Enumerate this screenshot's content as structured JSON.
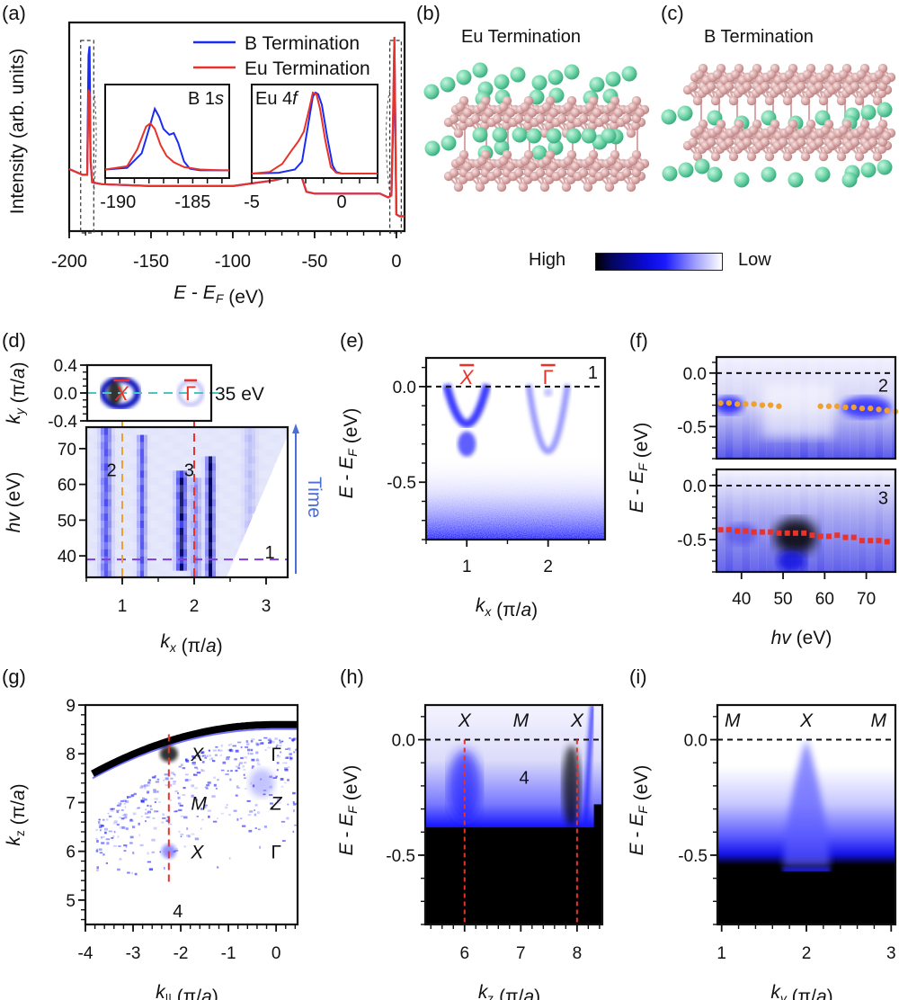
{
  "figure": {
    "panel_labels": [
      "(a)",
      "(b)",
      "(c)",
      "(d)",
      "(e)",
      "(f)",
      "(g)",
      "(h)",
      "(i)"
    ]
  },
  "colorbar": {
    "high_label": "High",
    "low_label": "Low",
    "colors": [
      "#000000",
      "#0a0ad8",
      "#1a1aff",
      "#ffffff"
    ]
  },
  "structures": {
    "b_title": "Eu Termination",
    "c_title": "B Termination",
    "eu_color": "#7fdcb4",
    "b_color": "#e2b5b5"
  },
  "chart_data": [
    {
      "id": "a",
      "type": "line",
      "xlabel": "E - E_F (eV)",
      "ylabel": "Intensity (arb. units)",
      "xlim": [
        -200,
        5
      ],
      "xticks": [
        -200,
        -150,
        -100,
        -50,
        0
      ],
      "xtick_labels": [
        "-200",
        "-150",
        "-100",
        "-50",
        "0"
      ],
      "legend": {
        "placement": "top-center",
        "entries": [
          {
            "name": "B   Termination",
            "color": "#1a2cf0"
          },
          {
            "name": "Eu Termination",
            "color": "#e8322a"
          }
        ]
      },
      "series": [
        {
          "name": "B Termination",
          "color": "#1a2cf0",
          "x": [
            -200,
            -192,
            -189,
            -188.2,
            -187.6,
            -187,
            -186,
            -180,
            -150,
            -130,
            -100,
            -75,
            -70,
            -66,
            -62,
            -58,
            -55,
            -50,
            -30,
            -10,
            -5,
            -3,
            -2,
            -1.2,
            -0.6,
            0,
            2,
            5
          ],
          "y": [
            0.3,
            0.27,
            0.27,
            0.9,
            0.95,
            0.35,
            0.23,
            0.22,
            0.21,
            0.21,
            0.21,
            0.24,
            0.25,
            0.3,
            0.3,
            0.26,
            0.18,
            0.17,
            0.17,
            0.17,
            0.15,
            0.16,
            0.55,
            0.97,
            0.5,
            0.06,
            0.05,
            0.05
          ]
        },
        {
          "name": "Eu Termination",
          "color": "#e8322a",
          "x": [
            -200,
            -192,
            -189,
            -188.2,
            -187.6,
            -187,
            -186,
            -180,
            -150,
            -130,
            -100,
            -75,
            -70,
            -66,
            -62,
            -58,
            -55,
            -50,
            -30,
            -10,
            -5,
            -3,
            -2,
            -1.2,
            -0.6,
            0,
            2,
            5
          ],
          "y": [
            0.3,
            0.27,
            0.27,
            0.72,
            0.7,
            0.35,
            0.23,
            0.22,
            0.21,
            0.21,
            0.21,
            0.24,
            0.25,
            0.29,
            0.29,
            0.26,
            0.18,
            0.17,
            0.17,
            0.17,
            0.15,
            0.16,
            0.6,
            1.0,
            0.5,
            0.06,
            0.05,
            0.05
          ]
        }
      ],
      "insets": [
        {
          "id": "a-inset-B1s",
          "label": "B 1s",
          "xlim": [
            -191,
            -182.5
          ],
          "xticks": [
            -190,
            -185
          ],
          "xtick_labels": [
            "-190",
            "-185"
          ],
          "series": [
            {
              "name": "B Termination",
              "x": [
                -191,
                -189.5,
                -188.5,
                -188,
                -187.6,
                -187.3,
                -187,
                -186.6,
                -186.3,
                -186,
                -185.6,
                -185.2,
                -184.5,
                -183,
                -182.5
              ],
              "y": [
                0.05,
                0.07,
                0.25,
                0.55,
                0.8,
                0.7,
                0.55,
                0.48,
                0.5,
                0.38,
                0.15,
                0.06,
                0.04,
                0.04,
                0.04
              ]
            },
            {
              "name": "Eu Termination",
              "x": [
                -191,
                -189.5,
                -188.8,
                -188.2,
                -187.9,
                -187.6,
                -187.2,
                -186.8,
                -186.3,
                -185.6,
                -184.5,
                -183,
                -182.5
              ],
              "y": [
                0.05,
                0.09,
                0.3,
                0.58,
                0.62,
                0.55,
                0.35,
                0.22,
                0.14,
                0.08,
                0.05,
                0.04,
                0.04
              ]
            }
          ]
        },
        {
          "id": "a-inset-Eu4f",
          "label": "Eu 4f",
          "xlim": [
            -5,
            2
          ],
          "xticks": [
            -5,
            0
          ],
          "xtick_labels": [
            "-5",
            "0"
          ],
          "series": [
            {
              "name": "B Termination",
              "x": [
                -5,
                -3.5,
                -2.6,
                -2.2,
                -1.9,
                -1.6,
                -1.45,
                -1.3,
                -1.1,
                -0.8,
                -0.5,
                -0.3,
                0,
                2
              ],
              "y": [
                0.0,
                0.01,
                0.05,
                0.15,
                0.55,
                0.95,
                1.0,
                0.98,
                0.85,
                0.45,
                0.1,
                0.02,
                0.0,
                0.0
              ]
            },
            {
              "name": "Eu Termination",
              "x": [
                -5,
                -4,
                -3.3,
                -2.8,
                -2.4,
                -2.1,
                -1.8,
                -1.6,
                -1.4,
                -1.2,
                -0.9,
                -0.6,
                -0.3,
                0,
                2
              ],
              "y": [
                0.0,
                0.02,
                0.12,
                0.28,
                0.4,
                0.52,
                0.8,
                1.0,
                0.98,
                0.8,
                0.4,
                0.08,
                0.01,
                0.0,
                0.0
              ]
            }
          ]
        }
      ]
    },
    {
      "id": "d-top",
      "type": "heatmap",
      "ylabel": "k_y (π/a)",
      "ylim": [
        -0.4,
        0.4
      ],
      "yticks": [
        0.4,
        0.0,
        -0.4
      ],
      "ytick_labels": [
        "0.4",
        "0.0",
        "-0.4"
      ],
      "xlim": [
        0.5,
        2.3
      ],
      "annotation": "35 eV",
      "points": [
        {
          "label": "X̄",
          "x": 1.0,
          "y": 0.0
        },
        {
          "label": "Γ̄",
          "x": 2.0,
          "y": 0.0
        }
      ]
    },
    {
      "id": "d",
      "type": "heatmap",
      "xlabel": "k_x (π/a)",
      "ylabel": "hv (eV)",
      "xlim": [
        0.5,
        3.3
      ],
      "ylim": [
        34,
        76
      ],
      "xticks": [
        1,
        2,
        3
      ],
      "xtick_labels": [
        "1",
        "2",
        "3"
      ],
      "yticks": [
        40,
        50,
        60,
        70
      ],
      "ytick_labels": [
        "40",
        "50",
        "60",
        "70"
      ],
      "cut_lines": [
        {
          "label": "1",
          "orientation": "horizontal",
          "value": 39,
          "color": "#7a3fd8"
        },
        {
          "label": "2",
          "orientation": "vertical",
          "value": 1.0,
          "color": "#f0a030"
        },
        {
          "label": "3",
          "orientation": "vertical",
          "value": 2.0,
          "color": "#e8322a"
        }
      ],
      "arrow_label": "Time",
      "bands_kx": [
        0.75,
        1.25,
        1.8,
        2.2
      ]
    },
    {
      "id": "e",
      "type": "heatmap",
      "xlabel": "k_x (π/a)",
      "ylabel": "E - E_F (eV)",
      "xlim": [
        0.5,
        2.7
      ],
      "ylim": [
        -0.8,
        0.15
      ],
      "xticks": [
        1,
        2
      ],
      "xtick_labels": [
        "1",
        "2"
      ],
      "yticks": [
        0.0,
        -0.5
      ],
      "ytick_labels": [
        "0.0",
        "-0.5"
      ],
      "cut_label": "1",
      "points": [
        {
          "label": "X̄",
          "x": 1.0
        },
        {
          "label": "Γ̄",
          "x": 2.0
        }
      ],
      "band_minima": [
        {
          "k": 1.0,
          "E": -0.32
        },
        {
          "k": 2.0,
          "E": -0.55
        }
      ]
    },
    {
      "id": "f-top",
      "type": "scatter",
      "ylabel": "E - E_F (eV)",
      "xlim": [
        34,
        77
      ],
      "ylim": [
        -0.8,
        0.15
      ],
      "yticks": [
        0.0,
        -0.5
      ],
      "ytick_labels": [
        "0.0",
        "-0.5"
      ],
      "cut_label": "2",
      "series": [
        {
          "name": "cut 2",
          "color": "#f0a030",
          "x": [
            35,
            37,
            39,
            41,
            43,
            45,
            47,
            49,
            59,
            61,
            63,
            65,
            67,
            69,
            71,
            73,
            75,
            77
          ],
          "y": [
            -0.28,
            -0.28,
            -0.29,
            -0.29,
            -0.29,
            -0.3,
            -0.3,
            -0.31,
            -0.31,
            -0.31,
            -0.31,
            -0.32,
            -0.32,
            -0.33,
            -0.33,
            -0.34,
            -0.35,
            -0.36
          ]
        }
      ]
    },
    {
      "id": "f-bottom",
      "type": "scatter",
      "xlabel": "hv (eV)",
      "ylabel": "E - E_F (eV)",
      "xlim": [
        34,
        77
      ],
      "ylim": [
        -0.8,
        0.15
      ],
      "xticks": [
        40,
        50,
        60,
        70
      ],
      "xtick_labels": [
        "40",
        "50",
        "60",
        "70"
      ],
      "yticks": [
        0.0,
        -0.5
      ],
      "ytick_labels": [
        "0.0",
        "-0.5"
      ],
      "cut_label": "3",
      "series": [
        {
          "name": "cut 3",
          "color": "#e8322a",
          "x": [
            35,
            37,
            39,
            41,
            43,
            45,
            47,
            49,
            51,
            53,
            55,
            57,
            59,
            61,
            63,
            65,
            67,
            69,
            71,
            73,
            75
          ],
          "y": [
            -0.41,
            -0.41,
            -0.42,
            -0.42,
            -0.43,
            -0.43,
            -0.43,
            -0.44,
            -0.44,
            -0.44,
            -0.44,
            -0.46,
            -0.47,
            -0.47,
            -0.46,
            -0.48,
            -0.48,
            -0.51,
            -0.51,
            -0.51,
            -0.52
          ]
        }
      ]
    },
    {
      "id": "g",
      "type": "heatmap",
      "xlabel": "k|| (π/a)",
      "ylabel": "k_z (π/a)",
      "xlim": [
        -4,
        0.45
      ],
      "ylim": [
        4.5,
        9
      ],
      "xticks": [
        -4,
        -3,
        -2,
        -1,
        0
      ],
      "xtick_labels": [
        "-4",
        "-3",
        "-2",
        "-1",
        "0"
      ],
      "yticks": [
        5,
        6,
        7,
        8,
        9
      ],
      "ytick_labels": [
        "5",
        "6",
        "7",
        "8",
        "9"
      ],
      "cut_line": {
        "label": "4",
        "k": -2.25,
        "color": "#e8322a"
      },
      "points": [
        {
          "label": "X",
          "x": -1.9,
          "y": 8.0
        },
        {
          "label": "M",
          "x": -1.9,
          "y": 7.0
        },
        {
          "label": "X",
          "x": -1.9,
          "y": 6.0
        },
        {
          "label": "Γ",
          "x": 0.0,
          "y": 8.0
        },
        {
          "label": "Z",
          "x": 0.0,
          "y": 7.0
        },
        {
          "label": "Γ",
          "x": 0.0,
          "y": 6.0
        }
      ]
    },
    {
      "id": "h",
      "type": "heatmap",
      "xlabel": "k_z (π/a)",
      "ylabel": "E - E_F (eV)",
      "xlim": [
        5.3,
        8.45
      ],
      "ylim": [
        -0.8,
        0.15
      ],
      "xticks": [
        6,
        7,
        8
      ],
      "xtick_labels": [
        "6",
        "7",
        "8"
      ],
      "yticks": [
        0.0,
        -0.5
      ],
      "ytick_labels": [
        "0.0",
        "-0.5"
      ],
      "cut_label": "4",
      "points": [
        {
          "label": "X",
          "x": 6.0
        },
        {
          "label": "M",
          "x": 7.0
        },
        {
          "label": "X",
          "x": 8.0
        }
      ]
    },
    {
      "id": "i",
      "type": "heatmap",
      "xlabel": "k_y (π/a)",
      "ylabel": "E - E_F (eV)",
      "xlim": [
        0.95,
        3.05
      ],
      "ylim": [
        -0.8,
        0.15
      ],
      "xticks": [
        1,
        2,
        3
      ],
      "xtick_labels": [
        "1",
        "2",
        "3"
      ],
      "yticks": [
        0.0,
        -0.5
      ],
      "ytick_labels": [
        "0.0",
        "-0.5"
      ],
      "points": [
        {
          "label": "M",
          "x": 1.0
        },
        {
          "label": "X",
          "x": 2.0
        },
        {
          "label": "M",
          "x": 3.0
        }
      ]
    }
  ]
}
